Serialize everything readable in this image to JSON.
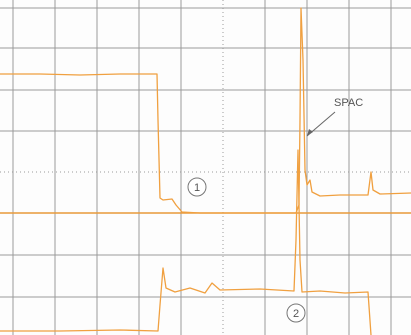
{
  "annotations": {
    "spac": "SPAC",
    "trace_1": "1",
    "trace_2": "2"
  }
}
